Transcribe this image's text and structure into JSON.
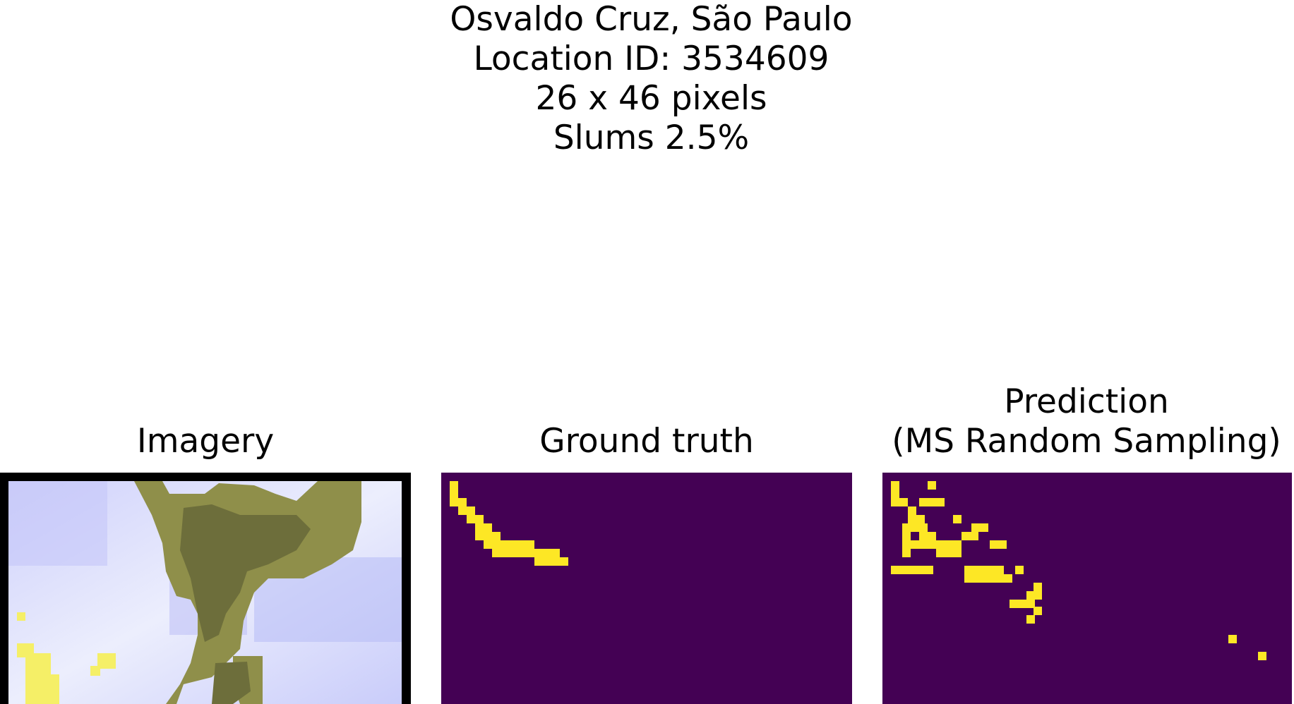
{
  "header": {
    "location": "Osvaldo Cruz, São Paulo",
    "location_id": "Location ID: 3534609",
    "dimensions": "26 x 46 pixels",
    "slums": "Slums 2.5%"
  },
  "panels": {
    "imagery": {
      "title": "Imagery"
    },
    "ground_truth": {
      "title": "Ground truth"
    },
    "prediction": {
      "title_line1": "Prediction",
      "title_line2": "(MS Random Sampling)"
    }
  },
  "colors": {
    "background_class": "#440154",
    "slum_class": "#fde725",
    "vegetation": "#6b6d3a",
    "urban": "#dfe0fb",
    "water_blue": "#b0b4f6"
  },
  "grid": {
    "rows": 26,
    "cols": 46
  }
}
